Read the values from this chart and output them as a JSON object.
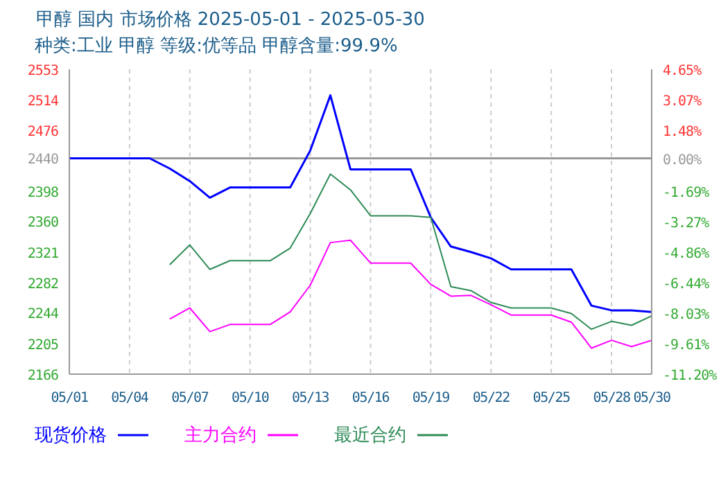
{
  "chart_data": {
    "type": "line",
    "title": "甲醇 国内 市场价格 2025-05-01 - 2025-05-30",
    "subtitle": "种类:工业 甲醇 等级:优等品 甲醇含量:99.9%",
    "x": [
      "--05-01",
      "--05-02",
      "--05-03",
      "--05-04",
      "--05-05",
      "--05-06",
      "--05-07",
      "--05-08",
      "--05-09",
      "--05-10",
      "--05-11",
      "--05-12",
      "--05-13",
      "--05-14",
      "--05-15",
      "--05-16",
      "--05-17",
      "--05-18",
      "--05-19",
      "--05-20",
      "--05-21",
      "--05-22",
      "--05-23",
      "--05-24",
      "--05-25",
      "--05-26",
      "--05-27",
      "--05-28",
      "--05-29",
      "--05-30"
    ],
    "series": [
      {
        "name": "现货价格",
        "color": "#0000ff",
        "values": [
          2440,
          2440,
          2440,
          2440,
          2440,
          2427,
          2411,
          2390,
          2403,
          2403,
          2403,
          2403,
          2450,
          2520,
          2426,
          2426,
          2426,
          2426,
          2365,
          2328,
          2321,
          2313,
          2299,
          2299,
          2299,
          2299,
          2253,
          2247,
          2247,
          2245
        ]
      },
      {
        "name": "主力合约",
        "color": "#ff00ff",
        "values": [
          null,
          null,
          null,
          null,
          null,
          2236,
          2250,
          2220,
          2229,
          2229,
          2229,
          2245,
          2279,
          2333,
          2336,
          2307,
          2307,
          2307,
          2280,
          2265,
          2266,
          2254,
          2241,
          2241,
          2241,
          2232,
          2199,
          2209,
          2201,
          2209
        ]
      },
      {
        "name": "最近合约",
        "color": "#2e8b57",
        "values": [
          null,
          null,
          null,
          null,
          null,
          2305,
          2330,
          2299,
          2310,
          2310,
          2310,
          2326,
          2370,
          2420,
          2400,
          2367,
          2367,
          2367,
          2365,
          2277,
          2272,
          2257,
          2250,
          2250,
          2250,
          2243,
          2223,
          2233,
          2228,
          2240
        ]
      }
    ],
    "xlim": [
      "--05-01",
      "--05-30"
    ],
    "xticks": [
      {
        "value": "--05-01",
        "label": "05/01"
      },
      {
        "value": "--05-04",
        "label": "05/04"
      },
      {
        "value": "--05-07",
        "label": "05/07"
      },
      {
        "value": "--05-10",
        "label": "05/10"
      },
      {
        "value": "--05-13",
        "label": "05/13"
      },
      {
        "value": "--05-16",
        "label": "05/16"
      },
      {
        "value": "--05-19",
        "label": "05/19"
      },
      {
        "value": "--05-22",
        "label": "05/22"
      },
      {
        "value": "--05-25",
        "label": "05/25"
      },
      {
        "value": "--05-28",
        "label": "05/28"
      },
      {
        "value": "--05-30",
        "label": "05/30"
      }
    ],
    "ylim": [
      2166,
      2553
    ],
    "yticks": [
      2166,
      2205,
      2244,
      2282,
      2321,
      2360,
      2398,
      2440,
      2476,
      2514,
      2553
    ],
    "y2lim": [
      -11.2,
      4.65
    ],
    "y2ticks": [
      {
        "value": -11.2,
        "label": "-11.20%"
      },
      {
        "value": -9.61,
        "label": "-9.61%"
      },
      {
        "value": -8.03,
        "label": "-8.03%"
      },
      {
        "value": -6.44,
        "label": "-6.44%"
      },
      {
        "value": -4.86,
        "label": "-4.86%"
      },
      {
        "value": -3.27,
        "label": "-3.27%"
      },
      {
        "value": -1.69,
        "label": "-1.69%"
      },
      {
        "value": 0,
        "label": "0.00%"
      },
      {
        "value": 1.48,
        "label": "1.48%"
      },
      {
        "value": 3.07,
        "label": "3.07%"
      },
      {
        "value": 4.65,
        "label": "4.65%"
      }
    ],
    "ref_lines": [
      {
        "axis": "y",
        "value": 2440,
        "color": "#999999"
      }
    ],
    "grid": true,
    "legend": "bottom",
    "marker": "none",
    "line_style": "solid"
  }
}
